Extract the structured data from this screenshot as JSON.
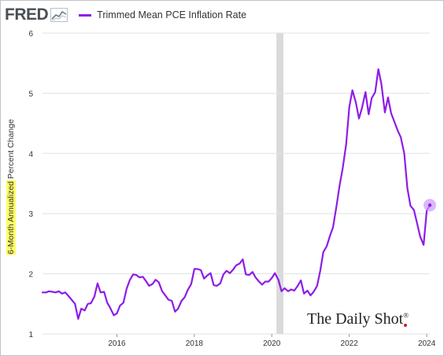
{
  "header": {
    "logo_text": "FRED",
    "logo_icon": "line-chart-icon",
    "legend_label": "Trimmed Mean PCE Inflation Rate"
  },
  "watermark": {
    "text": "The Daily Shot",
    "mark": "®"
  },
  "colors": {
    "series": "#8e1ce8",
    "recession": "#dadada",
    "grid": "#dde3e8",
    "highlight_dot": "#cc99ff",
    "axis_text": "#333333",
    "ylabel_highlight": "#ffff66"
  },
  "chart_data": {
    "type": "line",
    "xlabel": "",
    "ylabel_highlight": "6-Month Annualized",
    "ylabel_rest": "Percent Change",
    "ylim": [
      1,
      6
    ],
    "yticks": [
      "1",
      "2",
      "3",
      "4",
      "5",
      "6"
    ],
    "xlim": [
      2014.08,
      2024.08
    ],
    "xticks": [
      "2016",
      "2018",
      "2020",
      "2022",
      "2024"
    ],
    "grid": "horizontal",
    "recession": [
      2020.12,
      2020.3
    ],
    "series": [
      {
        "name": "Trimmed Mean PCE Inflation Rate",
        "x": [
          2014.08,
          2014.17,
          2014.25,
          2014.33,
          2014.42,
          2014.5,
          2014.58,
          2014.67,
          2014.75,
          2014.83,
          2014.92,
          2015.0,
          2015.08,
          2015.17,
          2015.25,
          2015.33,
          2015.42,
          2015.5,
          2015.58,
          2015.67,
          2015.75,
          2015.83,
          2015.92,
          2016.0,
          2016.08,
          2016.17,
          2016.25,
          2016.33,
          2016.42,
          2016.5,
          2016.58,
          2016.67,
          2016.75,
          2016.83,
          2016.92,
          2017.0,
          2017.08,
          2017.17,
          2017.25,
          2017.33,
          2017.42,
          2017.5,
          2017.58,
          2017.67,
          2017.75,
          2017.83,
          2017.92,
          2018.0,
          2018.08,
          2018.17,
          2018.25,
          2018.33,
          2018.42,
          2018.5,
          2018.58,
          2018.67,
          2018.75,
          2018.83,
          2018.92,
          2019.0,
          2019.08,
          2019.17,
          2019.25,
          2019.33,
          2019.42,
          2019.5,
          2019.58,
          2019.67,
          2019.75,
          2019.83,
          2019.92,
          2020.0,
          2020.08,
          2020.17,
          2020.25,
          2020.33,
          2020.42,
          2020.5,
          2020.58,
          2020.67,
          2020.75,
          2020.83,
          2020.92,
          2021.0,
          2021.08,
          2021.17,
          2021.25,
          2021.33,
          2021.42,
          2021.5,
          2021.58,
          2021.67,
          2021.75,
          2021.83,
          2021.92,
          2022.0,
          2022.08,
          2022.17,
          2022.25,
          2022.33,
          2022.42,
          2022.5,
          2022.58,
          2022.67,
          2022.75,
          2022.83,
          2022.92,
          2023.0,
          2023.08,
          2023.17,
          2023.25,
          2023.33,
          2023.42,
          2023.5,
          2023.58,
          2023.67,
          2023.75,
          2023.83,
          2023.92,
          2024.0,
          2024.08
        ],
        "values": [
          1.69,
          1.69,
          1.71,
          1.7,
          1.69,
          1.71,
          1.67,
          1.69,
          1.63,
          1.57,
          1.5,
          1.25,
          1.42,
          1.39,
          1.5,
          1.51,
          1.62,
          1.84,
          1.69,
          1.7,
          1.52,
          1.43,
          1.31,
          1.34,
          1.47,
          1.52,
          1.75,
          1.89,
          1.99,
          1.98,
          1.94,
          1.95,
          1.88,
          1.8,
          1.83,
          1.9,
          1.86,
          1.71,
          1.64,
          1.57,
          1.55,
          1.37,
          1.42,
          1.55,
          1.61,
          1.73,
          1.83,
          2.08,
          2.08,
          2.06,
          1.92,
          1.97,
          2.01,
          1.81,
          1.8,
          1.84,
          1.99,
          2.05,
          2.01,
          2.07,
          2.14,
          2.17,
          2.24,
          1.99,
          1.98,
          2.03,
          1.94,
          1.87,
          1.82,
          1.87,
          1.87,
          1.93,
          2.01,
          1.9,
          1.71,
          1.76,
          1.71,
          1.74,
          1.72,
          1.8,
          1.89,
          1.67,
          1.72,
          1.64,
          1.7,
          1.8,
          2.05,
          2.36,
          2.46,
          2.63,
          2.77,
          3.12,
          3.47,
          3.75,
          4.15,
          4.77,
          5.05,
          4.85,
          4.58,
          4.76,
          5.02,
          4.65,
          4.92,
          5.02,
          5.4,
          5.15,
          4.68,
          4.93,
          4.67,
          4.52,
          4.38,
          4.27,
          4.0,
          3.42,
          3.13,
          3.06,
          2.84,
          2.62,
          2.48,
          3.05,
          3.14
        ]
      }
    ]
  }
}
